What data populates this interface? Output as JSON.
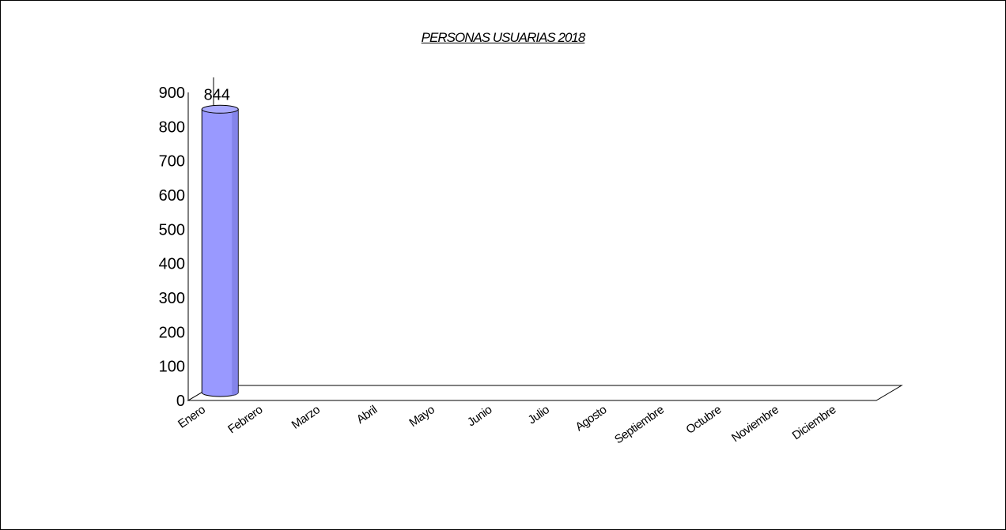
{
  "chart_data": {
    "type": "bar",
    "title": "PERSONAS USUARIAS 2018",
    "xlabel": "",
    "ylabel": "",
    "categories": [
      "Enero",
      "Febrero",
      "Marzo",
      "Abril",
      "Mayo",
      "Junio",
      "Julio",
      "Agosto",
      "Septiembre",
      "Octubre",
      "Noviembre",
      "Diciembre"
    ],
    "values": [
      844,
      0,
      0,
      0,
      0,
      0,
      0,
      0,
      0,
      0,
      0,
      0
    ],
    "data_labels": [
      "844"
    ],
    "ylim": [
      0,
      900
    ],
    "y_ticks": [
      "0",
      "100",
      "200",
      "300",
      "400",
      "500",
      "600",
      "700",
      "800",
      "900"
    ],
    "grid": false,
    "legend": "none",
    "three_d": true,
    "colors": {
      "bar": "#9999ff",
      "bar_dark": "#6f6fd6",
      "bar_top": "#aaaaff",
      "axis": "#000000"
    }
  }
}
